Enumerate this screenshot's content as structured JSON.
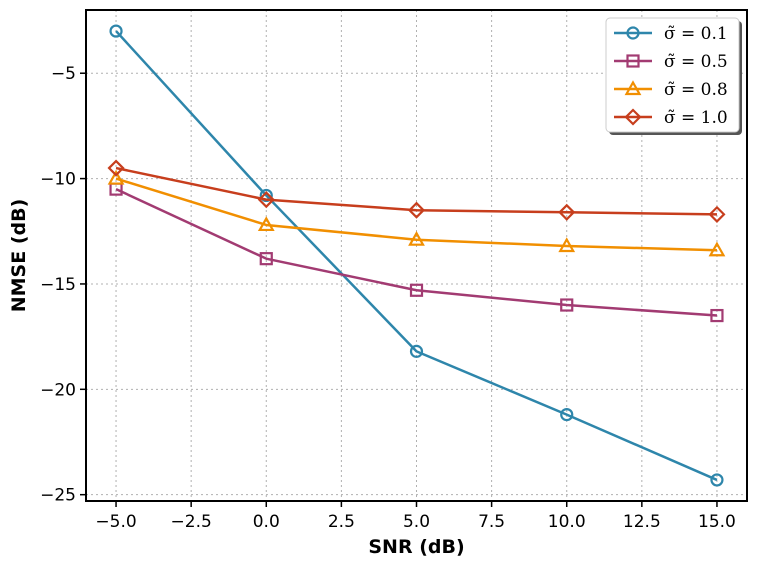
{
  "chart_data": {
    "type": "line",
    "title": "",
    "xlabel": "SNR (dB)",
    "ylabel": "NMSE (dB)",
    "x": [
      -5.0,
      0.0,
      5.0,
      10.0,
      15.0
    ],
    "xlim": [
      -6.0,
      16.0
    ],
    "ylim": [
      -25.3,
      -2.0
    ],
    "xticks": [
      -5.0,
      -2.5,
      0.0,
      2.5,
      5.0,
      7.5,
      10.0,
      12.5,
      15.0
    ],
    "xtick_labels": [
      "−5.0",
      "−2.5",
      "0.0",
      "2.5",
      "5.0",
      "7.5",
      "10.0",
      "12.5",
      "15.0"
    ],
    "yticks": [
      -5,
      -10,
      -15,
      -20,
      -25
    ],
    "ytick_labels": [
      "−5",
      "−10",
      "−15",
      "−20",
      "−25"
    ],
    "grid": true,
    "legend_position": "top-right",
    "series": [
      {
        "name": "σ̃ = 0.1",
        "color": "#2e86ab",
        "marker": "circle",
        "values": [
          -3.0,
          -10.8,
          -18.2,
          -21.2,
          -24.3
        ]
      },
      {
        "name": "σ̃ = 0.5",
        "color": "#a23b72",
        "marker": "square",
        "values": [
          -10.5,
          -13.8,
          -15.3,
          -16.0,
          -16.5
        ]
      },
      {
        "name": "σ̃ = 0.8",
        "color": "#f18f01",
        "marker": "triangle",
        "values": [
          -10.0,
          -12.2,
          -12.9,
          -13.2,
          -13.4
        ]
      },
      {
        "name": "σ̃ = 1.0",
        "color": "#c73e1d",
        "marker": "diamond",
        "values": [
          -9.5,
          -11.0,
          -11.5,
          -11.6,
          -11.7
        ]
      }
    ]
  }
}
